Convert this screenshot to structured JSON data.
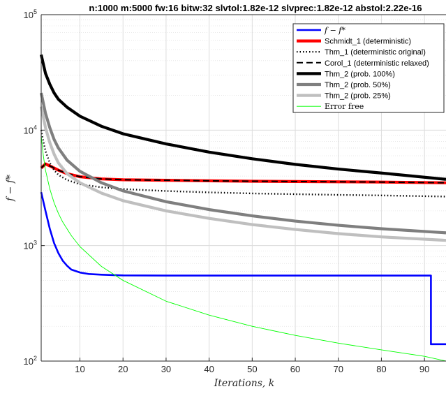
{
  "chart_data": {
    "type": "line",
    "title": "n:1000 m:5000 fw:16 bitw:32 slvtol:1.82e-12 slvprec:1.82e-12 abstol:2.22e-16",
    "xlabel": "Iterations, k",
    "ylabel": "f − f*",
    "y_scale": "log",
    "xlim": [
      1,
      95
    ],
    "ylim": [
      100,
      100000
    ],
    "grid": true,
    "legend_position": "top-right",
    "x_ticks": [
      10,
      20,
      30,
      40,
      50,
      60,
      70,
      80,
      90
    ],
    "x_tick_labels": [
      "10",
      "20",
      "30",
      "40",
      "50",
      "60",
      "70",
      "80",
      "90"
    ],
    "y_ticks": [
      100,
      1000,
      10000,
      100000
    ],
    "y_tick_labels": [
      {
        "base": "10",
        "exp": "2"
      },
      {
        "base": "10",
        "exp": "3"
      },
      {
        "base": "10",
        "exp": "4"
      },
      {
        "base": "10",
        "exp": "5"
      }
    ],
    "series": [
      {
        "name": "f − f*",
        "color": "#0000ff",
        "width": 2.6,
        "dash": "",
        "x": [
          1,
          2,
          3,
          4,
          5,
          6,
          7,
          8,
          10,
          12,
          15,
          18,
          20,
          30,
          50,
          70,
          91.5,
          91.5,
          92,
          95
        ],
        "y": [
          2900,
          2000,
          1400,
          1050,
          860,
          740,
          670,
          620,
          585,
          568,
          560,
          555,
          552,
          550,
          550,
          550,
          550,
          140,
          140,
          140
        ]
      },
      {
        "name": "Schmidt_1 (deterministic)",
        "color": "#ff0000",
        "width": 4.2,
        "dash": "",
        "x": [
          1,
          2,
          3,
          5,
          7,
          10,
          15,
          20,
          30,
          40,
          50,
          60,
          70,
          80,
          95
        ],
        "y": [
          4700,
          5100,
          4900,
          4500,
          4200,
          3950,
          3780,
          3720,
          3680,
          3640,
          3610,
          3590,
          3570,
          3550,
          3500
        ]
      },
      {
        "name": "Thm_1 (deterministic original)",
        "color": "#000000",
        "width": 2.4,
        "dash": "1.5,3",
        "x": [
          1,
          1.5,
          2,
          3,
          4,
          5,
          7,
          10,
          15,
          20,
          30,
          40,
          50,
          60,
          70,
          80,
          95
        ],
        "y": [
          10000,
          8000,
          6600,
          5200,
          4500,
          4100,
          3700,
          3400,
          3200,
          3090,
          2970,
          2890,
          2830,
          2790,
          2750,
          2720,
          2660
        ]
      },
      {
        "name": "Corol_1 (deterministic relaxed)",
        "color": "#000000",
        "width": 2.0,
        "dash": "9,5",
        "x": [
          1,
          2,
          3,
          5,
          7,
          10,
          15,
          20,
          30,
          40,
          50,
          60,
          70,
          80,
          95
        ],
        "y": [
          4700,
          5100,
          4900,
          4500,
          4200,
          3950,
          3780,
          3720,
          3680,
          3640,
          3610,
          3590,
          3570,
          3550,
          3500
        ]
      },
      {
        "name": "Thm_2 (prob. 100%)",
        "color": "#000000",
        "width": 4.2,
        "dash": "",
        "x": [
          1,
          2,
          3,
          4,
          5,
          7,
          10,
          15,
          20,
          30,
          40,
          50,
          60,
          70,
          80,
          95
        ],
        "y": [
          45000,
          31000,
          25000,
          21000,
          18500,
          15800,
          13200,
          10800,
          9300,
          7600,
          6450,
          5650,
          5050,
          4600,
          4250,
          3750
        ]
      },
      {
        "name": "Thm_2 (prob. 50%)",
        "color": "#7f7f7f",
        "width": 4.2,
        "dash": "",
        "x": [
          1,
          2,
          3,
          4,
          5,
          7,
          10,
          15,
          20,
          30,
          40,
          50,
          60,
          70,
          80,
          95
        ],
        "y": [
          21000,
          14000,
          10500,
          8300,
          7000,
          5500,
          4400,
          3500,
          2980,
          2400,
          2050,
          1810,
          1630,
          1500,
          1400,
          1290
        ]
      },
      {
        "name": "Thm_2 (prob. 25%)",
        "color": "#bfbfbf",
        "width": 4.2,
        "dash": "",
        "x": [
          1,
          2,
          3,
          4,
          5,
          7,
          10,
          15,
          20,
          30,
          40,
          50,
          60,
          70,
          80,
          95
        ],
        "y": [
          16000,
          10500,
          7800,
          6200,
          5200,
          4200,
          3500,
          2850,
          2450,
          2000,
          1720,
          1520,
          1380,
          1270,
          1190,
          1110
        ]
      },
      {
        "name": "Error free",
        "color": "#00ff00",
        "width": 0.9,
        "dash": "",
        "x": [
          1,
          1.5,
          2,
          3,
          4,
          5,
          6,
          8,
          10,
          15,
          20,
          30,
          40,
          50,
          60,
          70,
          80,
          90,
          95
        ],
        "y": [
          9000,
          6000,
          4500,
          3100,
          2350,
          1900,
          1600,
          1220,
          980,
          660,
          500,
          330,
          250,
          200,
          167,
          143,
          125,
          110,
          100
        ]
      }
    ]
  }
}
